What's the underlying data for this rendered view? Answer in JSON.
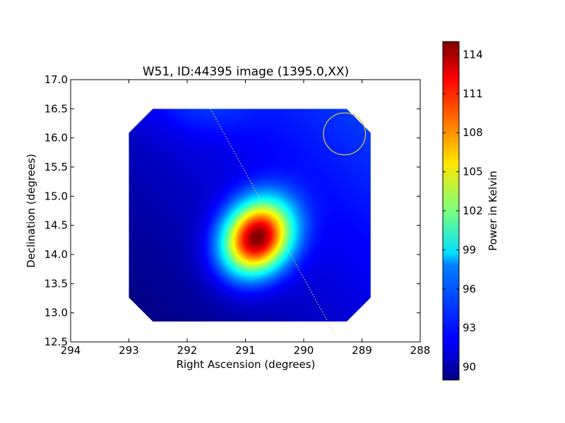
{
  "chart_data": {
    "type": "heatmap",
    "title": "W51, ID:44395 image (1395.0,XX)",
    "xlabel": "Right Ascension (degrees)",
    "ylabel": "Declination (degrees)",
    "xlim": [
      294,
      288
    ],
    "ylim": [
      12.5,
      17.0
    ],
    "xticks": [
      294,
      293,
      292,
      291,
      290,
      289,
      288
    ],
    "xtick_labels": [
      "294",
      "293",
      "292",
      "291",
      "290",
      "289",
      "288"
    ],
    "yticks": [
      12.5,
      13.0,
      13.5,
      14.0,
      14.5,
      15.0,
      15.5,
      16.0,
      16.5,
      17.0
    ],
    "ytick_labels": [
      "12.5",
      "13.0",
      "13.5",
      "14.0",
      "14.5",
      "15.0",
      "15.5",
      "16.0",
      "16.5",
      "17.0"
    ],
    "image_extent": {
      "ra": [
        293.0,
        288.85
      ],
      "dec": [
        12.85,
        16.5
      ]
    },
    "source_peak": {
      "ra": 290.8,
      "dec": 14.3,
      "value": 115
    },
    "background_range": [
      89,
      94
    ],
    "beam_circle": {
      "ra": 289.3,
      "dec": 16.07,
      "color": "#d4c43a"
    },
    "scan_line": {
      "points": [
        [
          291.6,
          16.5
        ],
        [
          289.45,
          12.6
        ]
      ],
      "color": "#d8d460",
      "style": "dotted"
    },
    "colorbar": {
      "label": "Power in Kelvin",
      "vmin": 89,
      "vmax": 115,
      "ticks": [
        90,
        93,
        96,
        99,
        102,
        105,
        108,
        111,
        114
      ],
      "tick_labels": [
        "90",
        "93",
        "96",
        "99",
        "102",
        "105",
        "108",
        "111",
        "114"
      ],
      "colormap": "jet"
    }
  }
}
